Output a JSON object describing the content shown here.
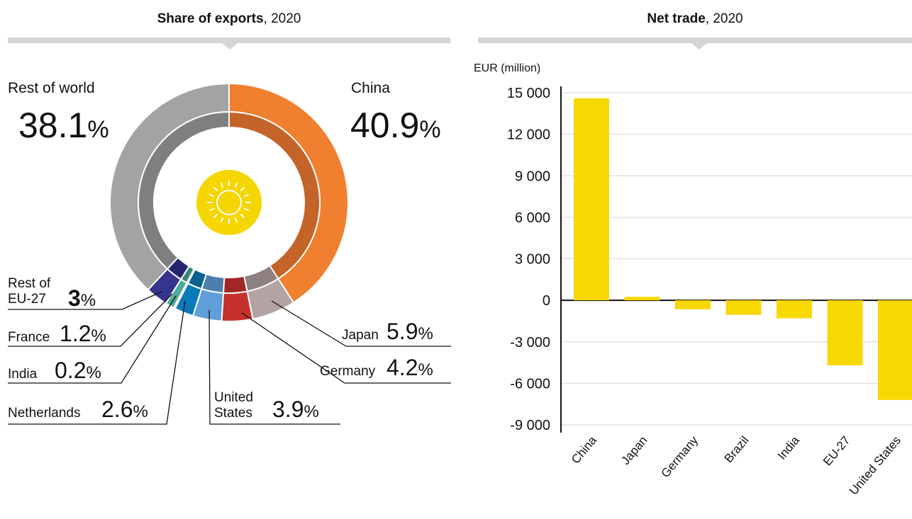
{
  "left_panel": {
    "title_bold": "Share of exports",
    "title_rest": ", 2020"
  },
  "right_panel": {
    "title_bold": "Net trade",
    "title_rest": ", 2020",
    "unit_label": "EUR (million)"
  },
  "colors": {
    "sun_fill": "#f5d600",
    "bar": "#f7d800",
    "rule": "#d5d5d5"
  },
  "chart_data": [
    {
      "type": "pie",
      "title": "Share of exports, 2020",
      "unit": "%",
      "slices": [
        {
          "label": "China",
          "value": 40.9,
          "display": "40.9",
          "color": "#f07f30",
          "inner": "#c46428"
        },
        {
          "label": "Japan",
          "value": 5.9,
          "display": "5.9",
          "color": "#b3a3a3",
          "inner": "#8e7f80"
        },
        {
          "label": "Germany",
          "value": 4.2,
          "display": "4.2",
          "color": "#c7312d",
          "inner": "#a22724"
        },
        {
          "label": "United States",
          "value": 3.9,
          "display": "3.9",
          "color": "#609fd8",
          "inner": "#4b7fae"
        },
        {
          "label": "Netherlands",
          "value": 2.6,
          "display": "2.6",
          "color": "#0a7ab9",
          "inner": "#08618f"
        },
        {
          "label": "India",
          "value": 0.2,
          "display": "0.2",
          "color": "#7fd3c4",
          "inner": "#5fae9f"
        },
        {
          "label": "France",
          "value": 1.2,
          "display": "1.2",
          "color": "#4cab9b",
          "inner": "#3a877a"
        },
        {
          "label": "Rest of EU-27",
          "value": 3.0,
          "display": "3",
          "color": "#35358f",
          "inner": "#262670"
        },
        {
          "label": "Rest of world",
          "value": 38.1,
          "display": "38.1",
          "color": "#a3a3a3",
          "inner": "#7f7f7f"
        }
      ],
      "label_text": {
        "rest_of_world": "Rest of world",
        "china": "China",
        "rest_eu_1": "Rest of",
        "rest_eu_2": "EU-27",
        "france": "France",
        "india": "India",
        "netherlands": "Netherlands",
        "us_1": "United",
        "us_2": "States",
        "japan": "Japan",
        "germany": "Germany"
      }
    },
    {
      "type": "bar",
      "title": "Net trade, 2020",
      "ylabel": "EUR (million)",
      "categories": [
        "China",
        "Japan",
        "Germany",
        "Brazil",
        "India",
        "EU-27",
        "United States"
      ],
      "values": [
        14600,
        250,
        -650,
        -1050,
        -1300,
        -4700,
        -7200
      ],
      "ylim": [
        -9000,
        15000
      ],
      "yticks": [
        15000,
        12000,
        9000,
        6000,
        3000,
        0,
        -3000,
        -6000,
        -9000
      ],
      "ytick_labels": [
        "15 000",
        "12 000",
        "9 000",
        "6 000",
        "3 000",
        "0",
        "-3 000",
        "-6 000",
        "-9 000"
      ],
      "grid": true
    }
  ]
}
